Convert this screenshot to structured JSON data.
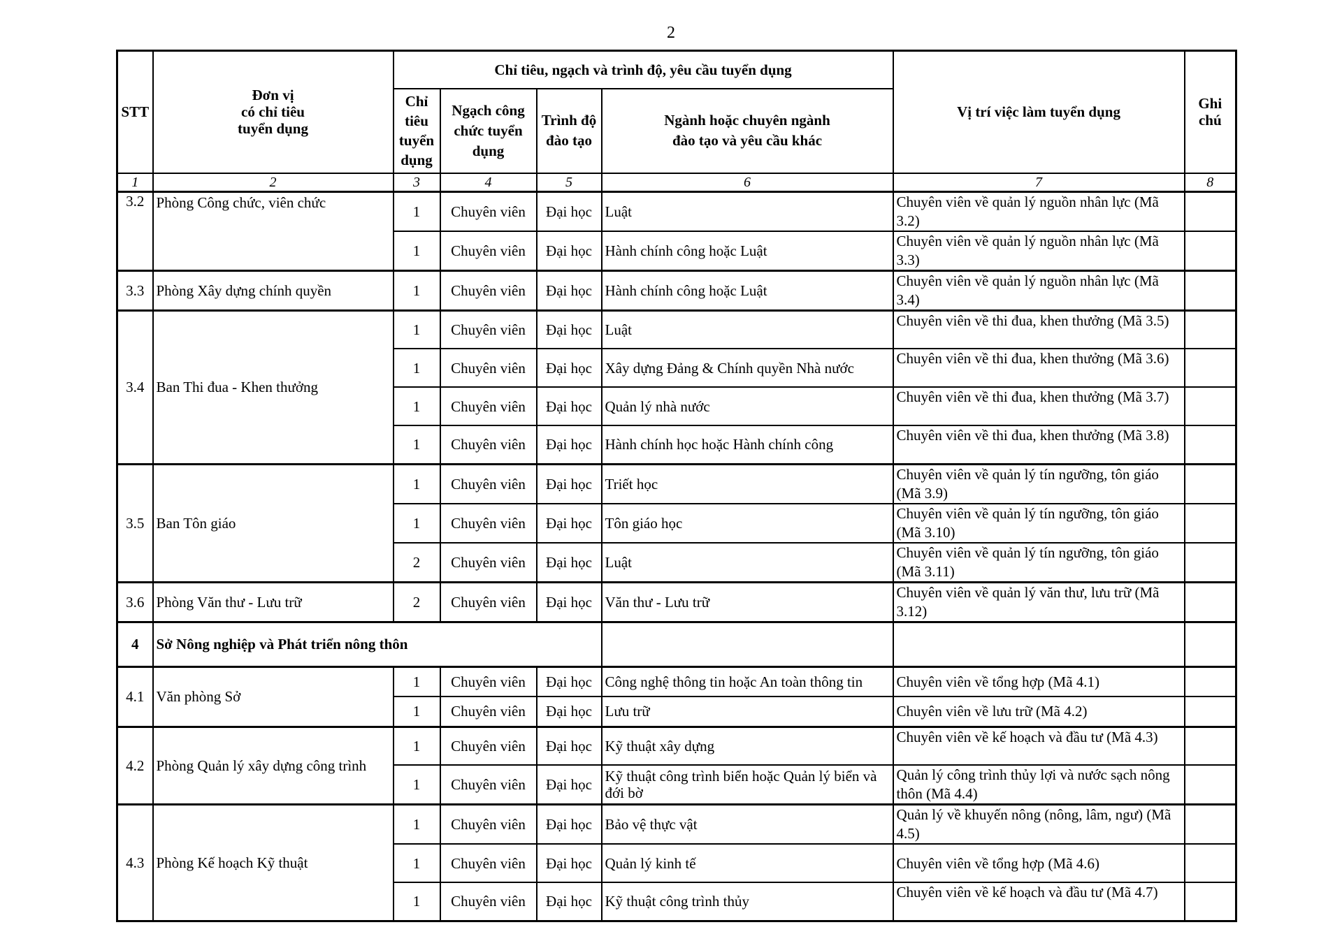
{
  "page_number": "2",
  "header": {
    "stt": "STT",
    "unit": [
      "Đơn vị",
      "có chỉ tiêu",
      "tuyển dụng"
    ],
    "group": "Chỉ tiêu, ngạch và trình độ, yêu cầu tuyển dụng",
    "quota": [
      "Chỉ",
      "tiêu",
      "tuyển",
      "dụng"
    ],
    "rank": [
      "Ngạch công",
      "chức tuyển",
      "dụng"
    ],
    "level": [
      "Trình độ",
      "đào tạo"
    ],
    "major": [
      "Ngành hoặc chuyên ngành",
      "đào tạo và yêu cầu khác"
    ],
    "position": "Vị trí việc làm tuyển dụng",
    "note": [
      "Ghi",
      "chú"
    ],
    "numbers": [
      "1",
      "2",
      "3",
      "4",
      "5",
      "6",
      "7",
      "8"
    ]
  },
  "groups": [
    {
      "stt": "3.2",
      "unit": "Phòng Công chức, viên chức",
      "rows": [
        {
          "quota": "1",
          "rank": "Chuyên viên",
          "level": "Đại học",
          "major": "Luật",
          "position": "Chuyên viên về quản lý nguồn nhân lực (Mã 3.2)"
        },
        {
          "quota": "1",
          "rank": "Chuyên viên",
          "level": "Đại học",
          "major": "Hành chính công hoặc Luật",
          "position": "Chuyên viên về quản lý nguồn nhân lực (Mã 3.3)"
        }
      ]
    },
    {
      "stt": "3.3",
      "unit": "Phòng Xây dựng chính quyền",
      "rows": [
        {
          "quota": "1",
          "rank": "Chuyên viên",
          "level": "Đại học",
          "major": "Hành chính công hoặc Luật",
          "position": "Chuyên viên về quản lý nguồn nhân lực (Mã 3.4)"
        }
      ]
    },
    {
      "stt": "3.4",
      "unit": "Ban Thi đua - Khen thưởng",
      "rows": [
        {
          "quota": "1",
          "rank": "Chuyên viên",
          "level": "Đại học",
          "major": "Luật",
          "position": "Chuyên viên về thi đua, khen thưởng (Mã 3.5)"
        },
        {
          "quota": "1",
          "rank": "Chuyên viên",
          "level": "Đại học",
          "major": "Xây dựng Đảng & Chính quyền Nhà nước",
          "position": "Chuyên viên về thi đua, khen thưởng (Mã 3.6)"
        },
        {
          "quota": "1",
          "rank": "Chuyên viên",
          "level": "Đại học",
          "major": "Quản lý nhà nước",
          "position": "Chuyên viên về thi đua, khen thưởng (Mã 3.7)"
        },
        {
          "quota": "1",
          "rank": "Chuyên viên",
          "level": "Đại học",
          "major": "Hành chính học hoặc Hành chính công",
          "position": "Chuyên viên về thi đua, khen thưởng (Mã 3.8)"
        }
      ]
    },
    {
      "stt": "3.5",
      "unit": "Ban Tôn giáo",
      "rows": [
        {
          "quota": "1",
          "rank": "Chuyên viên",
          "level": "Đại học",
          "major": "Triết học",
          "position": "Chuyên viên về quản lý tín ngưỡng, tôn giáo (Mã 3.9)"
        },
        {
          "quota": "1",
          "rank": "Chuyên viên",
          "level": "Đại học",
          "major": "Tôn giáo học",
          "position": "Chuyên viên về quản lý tín ngưỡng, tôn giáo (Mã 3.10)"
        },
        {
          "quota": "2",
          "rank": "Chuyên viên",
          "level": "Đại học",
          "major": "Luật",
          "position": "Chuyên viên về quản lý tín ngưỡng, tôn giáo (Mã 3.11)"
        }
      ]
    },
    {
      "stt": "3.6",
      "unit": "Phòng Văn thư - Lưu trữ",
      "rows": [
        {
          "quota": "2",
          "rank": "Chuyên viên",
          "level": "Đại học",
          "major": "Văn thư - Lưu trữ",
          "position": "Chuyên viên về quản lý văn thư, lưu trữ (Mã 3.12)"
        }
      ]
    },
    {
      "section": true,
      "stt": "4",
      "unit": "Sở Nông nghiệp và Phát triển nông thôn"
    },
    {
      "stt": "4.1",
      "unit": "Văn phòng Sở",
      "short": true,
      "rows": [
        {
          "quota": "1",
          "rank": "Chuyên viên",
          "level": "Đại học",
          "major": "Công nghệ thông tin hoặc An toàn thông tin",
          "position": "Chuyên viên về tổng hợp (Mã 4.1)"
        },
        {
          "quota": "1",
          "rank": "Chuyên viên",
          "level": "Đại học",
          "major": "Lưu trữ",
          "position": "Chuyên viên về lưu trữ (Mã 4.2)"
        }
      ]
    },
    {
      "stt": "4.2",
      "unit": "Phòng Quản lý xây dựng công trình",
      "rows": [
        {
          "quota": "1",
          "rank": "Chuyên viên",
          "level": "Đại học",
          "major": "Kỹ thuật xây dựng",
          "position": "Chuyên viên về kế hoạch và đầu tư (Mã 4.3)"
        },
        {
          "quota": "1",
          "rank": "Chuyên viên",
          "level": "Đại học",
          "major": "Kỹ thuật công trình biển hoặc Quản lý biển và đới bờ",
          "position": "Quản lý công trình thủy lợi và nước sạch nông thôn (Mã 4.4)"
        }
      ]
    },
    {
      "stt": "4.3",
      "unit": "Phòng Kế hoạch Kỹ thuật",
      "rows": [
        {
          "quota": "1",
          "rank": "Chuyên viên",
          "level": "Đại học",
          "major": "Bảo vệ thực vật",
          "position": "Quản lý về khuyến nông (nông, lâm, ngư) (Mã 4.5)"
        },
        {
          "quota": "1",
          "rank": "Chuyên viên",
          "level": "Đại học",
          "major": "Quản lý kinh tế",
          "position": "Chuyên viên về tổng hợp (Mã 4.6)"
        },
        {
          "quota": "1",
          "rank": "Chuyên viên",
          "level": "Đại học",
          "major": "Kỹ thuật công trình thủy",
          "position": "Chuyên viên về kế hoạch và đầu tư (Mã 4.7)"
        }
      ]
    }
  ]
}
